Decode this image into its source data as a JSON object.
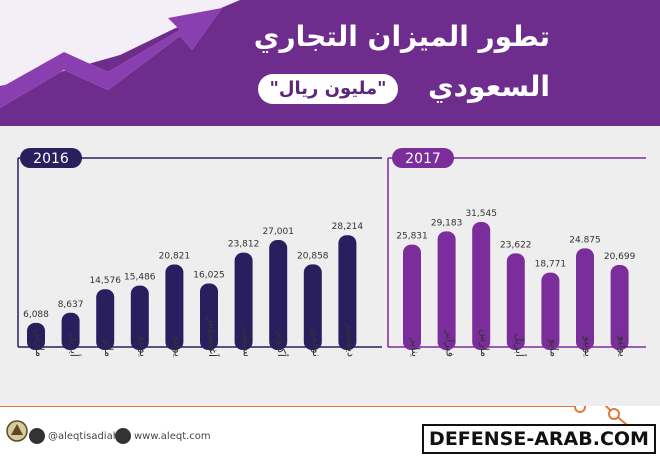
{
  "title": {
    "line1": "تطور الميزان التجاري",
    "line2": "السعودي",
    "unit": "\"مليون ريال\""
  },
  "colors": {
    "header_purple": "#6e2d8c",
    "bar_2016": "#2a1f5e",
    "bar_2017": "#7b2d9b",
    "panel": "#eeeeef",
    "accent_orange": "#e07a3a"
  },
  "icons": [
    "growth-arrow-icon",
    "twitter-bubble-icon",
    "web-bubble-icon",
    "emblem-icon"
  ],
  "chart_data": {
    "type": "bar",
    "title": "تطور الميزان التجاري السعودي",
    "subtitle": "\"مليون ريال\"",
    "xlabel": "",
    "ylabel": "",
    "grid": false,
    "panels": [
      {
        "label": "2016",
        "categories": [
          "مارس",
          "أبريل",
          "مايو",
          "يونيو",
          "يوليو",
          "أغسطس",
          "سبتمبر",
          "أكتوبر",
          "نوفمبر",
          "ديسمبر"
        ],
        "values": [
          6088,
          8637,
          14576,
          15486,
          20821,
          16025,
          23812,
          27001,
          20858,
          28214
        ],
        "value_labels": [
          "6,088",
          "8,637",
          "14,576",
          "15,486",
          "20,821",
          "16,025",
          "23,812",
          "27,001",
          "20,858",
          "28,214"
        ]
      },
      {
        "label": "2017",
        "categories": [
          "يناير",
          "فبراير",
          "مارس",
          "أبريل",
          "مايو",
          "يونيو",
          "يوليو"
        ],
        "values": [
          25831,
          29183,
          31545,
          23622,
          18771,
          24875,
          20699
        ],
        "value_labels": [
          "25,831",
          "29,183",
          "31,545",
          "23,622",
          "18,771",
          "24.875",
          "20,699"
        ]
      }
    ]
  },
  "footer": {
    "twitter_handle": "@aleqtisadiah",
    "website": "www.aleqt.com",
    "brand": "DEFENSE-ARAB.COM"
  }
}
